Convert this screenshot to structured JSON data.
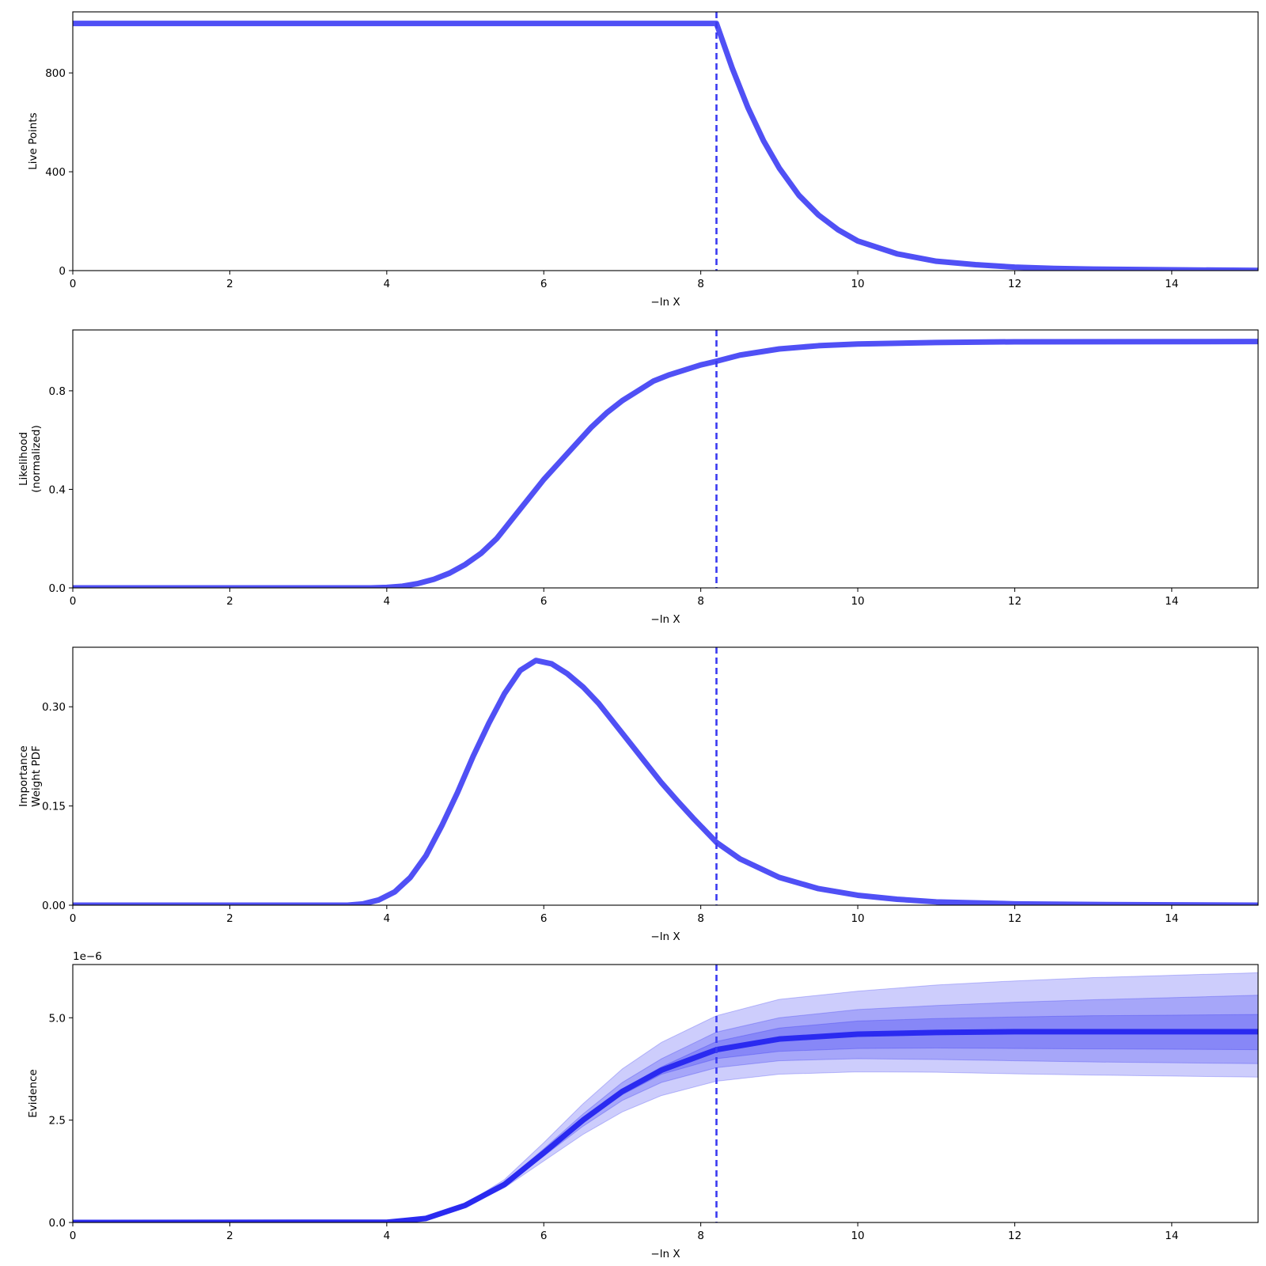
{
  "chart_data": [
    {
      "type": "line",
      "xlabel": "−ln X",
      "ylabel": [
        "Live Points"
      ],
      "xlim": [
        0,
        15.1
      ],
      "ylim": [
        0,
        1047
      ],
      "xticks": [
        0,
        2,
        4,
        6,
        8,
        10,
        12,
        14
      ],
      "xtick_labels": [
        "0",
        "2",
        "4",
        "6",
        "8",
        "10",
        "12",
        "14"
      ],
      "yticks": [
        0,
        400,
        800
      ],
      "ytick_labels": [
        "0",
        "400",
        "800"
      ],
      "vline": 8.2,
      "series": [
        {
          "style": "thick",
          "x": [
            0,
            8.2,
            8.4,
            8.6,
            8.8,
            9.0,
            9.25,
            9.5,
            9.75,
            10.0,
            10.5,
            11.0,
            11.5,
            12.0,
            12.5,
            13.0,
            14.0,
            15.1
          ],
          "y": [
            1000,
            1000,
            820,
            660,
            525,
            415,
            305,
            225,
            165,
            120,
            68,
            38,
            24,
            14,
            9,
            6,
            3,
            1
          ]
        }
      ]
    },
    {
      "type": "line",
      "xlabel": "−ln X",
      "ylabel": [
        "Likelihood",
        "(normalized)"
      ],
      "xlim": [
        0,
        15.1
      ],
      "ylim": [
        0,
        1.047
      ],
      "xticks": [
        0,
        2,
        4,
        6,
        8,
        10,
        12,
        14
      ],
      "xtick_labels": [
        "0",
        "2",
        "4",
        "6",
        "8",
        "10",
        "12",
        "14"
      ],
      "yticks": [
        0,
        0.4,
        0.8
      ],
      "ytick_labels": [
        "0.0",
        "0.4",
        "0.8"
      ],
      "vline": 8.2,
      "series": [
        {
          "style": "thick",
          "x": [
            0,
            3.8,
            4.0,
            4.2,
            4.4,
            4.6,
            4.8,
            5.0,
            5.2,
            5.4,
            5.6,
            5.8,
            6.0,
            6.2,
            6.4,
            6.6,
            6.8,
            7.0,
            7.2,
            7.4,
            7.6,
            7.8,
            8.0,
            8.2,
            8.5,
            9.0,
            9.5,
            10.0,
            11.0,
            12.0,
            15.1
          ],
          "y": [
            0,
            0,
            0.002,
            0.007,
            0.018,
            0.035,
            0.06,
            0.095,
            0.14,
            0.2,
            0.28,
            0.36,
            0.44,
            0.51,
            0.58,
            0.65,
            0.71,
            0.76,
            0.8,
            0.84,
            0.865,
            0.885,
            0.905,
            0.92,
            0.945,
            0.97,
            0.983,
            0.99,
            0.996,
            0.999,
            1.0
          ]
        }
      ]
    },
    {
      "type": "line",
      "xlabel": "−ln X",
      "ylabel": [
        "Importance",
        "Weight PDF"
      ],
      "xlim": [
        0,
        15.1
      ],
      "ylim": [
        0,
        0.39
      ],
      "xticks": [
        0,
        2,
        4,
        6,
        8,
        10,
        12,
        14
      ],
      "xtick_labels": [
        "0",
        "2",
        "4",
        "6",
        "8",
        "10",
        "12",
        "14"
      ],
      "yticks": [
        0,
        0.15,
        0.3
      ],
      "ytick_labels": [
        "0.00",
        "0.15",
        "0.30"
      ],
      "vline": 8.2,
      "series": [
        {
          "style": "thick",
          "x": [
            0,
            3.5,
            3.7,
            3.9,
            4.1,
            4.3,
            4.5,
            4.7,
            4.9,
            5.1,
            5.3,
            5.5,
            5.7,
            5.9,
            6.1,
            6.3,
            6.5,
            6.7,
            6.9,
            7.1,
            7.3,
            7.5,
            7.7,
            7.9,
            8.2,
            8.5,
            9.0,
            9.5,
            10.0,
            10.5,
            11.0,
            12.0,
            13.0,
            15.1
          ],
          "y": [
            0,
            0.0,
            0.002,
            0.008,
            0.02,
            0.042,
            0.075,
            0.12,
            0.17,
            0.225,
            0.275,
            0.32,
            0.355,
            0.37,
            0.365,
            0.35,
            0.33,
            0.305,
            0.275,
            0.245,
            0.215,
            0.185,
            0.158,
            0.132,
            0.095,
            0.07,
            0.042,
            0.025,
            0.015,
            0.009,
            0.005,
            0.002,
            0.001,
            0.0
          ]
        }
      ]
    },
    {
      "type": "area",
      "xlabel": "−ln X",
      "ylabel": [
        "Evidence"
      ],
      "offset_text": "1e−6",
      "xlim": [
        0,
        15.1
      ],
      "ylim": [
        0,
        6.3
      ],
      "xticks": [
        0,
        2,
        4,
        6,
        8,
        10,
        12,
        14
      ],
      "xtick_labels": [
        "0",
        "2",
        "4",
        "6",
        "8",
        "10",
        "12",
        "14"
      ],
      "yticks": [
        0,
        2.5,
        5.0
      ],
      "ytick_labels": [
        "0.0",
        "2.5",
        "5.0"
      ],
      "vline": 8.2,
      "bands": [
        {
          "x": [
            0,
            4.0,
            4.5,
            5.0,
            5.5,
            6.0,
            6.5,
            7.0,
            7.5,
            8.2,
            9.0,
            10.0,
            11.0,
            12.0,
            13.0,
            15.1
          ],
          "upper": [
            0,
            0.005,
            0.12,
            0.45,
            1.05,
            1.95,
            2.9,
            3.75,
            4.4,
            5.05,
            5.45,
            5.65,
            5.8,
            5.9,
            5.98,
            6.1
          ],
          "lower": [
            0,
            0.005,
            0.09,
            0.38,
            0.85,
            1.5,
            2.15,
            2.7,
            3.1,
            3.45,
            3.62,
            3.68,
            3.67,
            3.63,
            3.6,
            3.55
          ]
        },
        {
          "x": [
            0,
            4.0,
            4.5,
            5.0,
            5.5,
            6.0,
            6.5,
            7.0,
            7.5,
            8.2,
            9.0,
            10.0,
            11.0,
            12.0,
            13.0,
            15.1
          ],
          "upper": [
            0,
            0.005,
            0.11,
            0.43,
            0.98,
            1.8,
            2.65,
            3.42,
            4.0,
            4.65,
            5.0,
            5.2,
            5.3,
            5.38,
            5.44,
            5.55
          ],
          "lower": [
            0,
            0.005,
            0.1,
            0.4,
            0.9,
            1.62,
            2.35,
            2.98,
            3.42,
            3.78,
            3.95,
            4.0,
            3.98,
            3.95,
            3.92,
            3.88
          ]
        },
        {
          "x": [
            0,
            4.0,
            4.5,
            5.0,
            5.5,
            6.0,
            6.5,
            7.0,
            7.5,
            8.2,
            9.0,
            10.0,
            11.0,
            12.0,
            13.0,
            15.1
          ],
          "upper": [
            0,
            0.005,
            0.105,
            0.42,
            0.94,
            1.72,
            2.52,
            3.25,
            3.8,
            4.42,
            4.75,
            4.92,
            4.98,
            5.02,
            5.05,
            5.08
          ],
          "lower": [
            0,
            0.005,
            0.1,
            0.41,
            0.92,
            1.68,
            2.45,
            3.12,
            3.62,
            4.0,
            4.18,
            4.25,
            4.26,
            4.25,
            4.24,
            4.22
          ]
        }
      ],
      "series": [
        {
          "style": "thick",
          "x": [
            0,
            4.0,
            4.5,
            5.0,
            5.5,
            6.0,
            6.5,
            7.0,
            7.5,
            8.2,
            9.0,
            10.0,
            11.0,
            12.0,
            13.0,
            15.1
          ],
          "y": [
            0,
            0.005,
            0.1,
            0.42,
            0.93,
            1.7,
            2.5,
            3.2,
            3.72,
            4.22,
            4.48,
            4.6,
            4.64,
            4.66,
            4.66,
            4.66
          ]
        }
      ]
    }
  ],
  "colors": {
    "line": "#5050f5",
    "evidence_line": "#2a2af0",
    "vline": "#3a3af0",
    "band": "#1a1af0",
    "axes": "#000000",
    "background": "#ffffff"
  }
}
